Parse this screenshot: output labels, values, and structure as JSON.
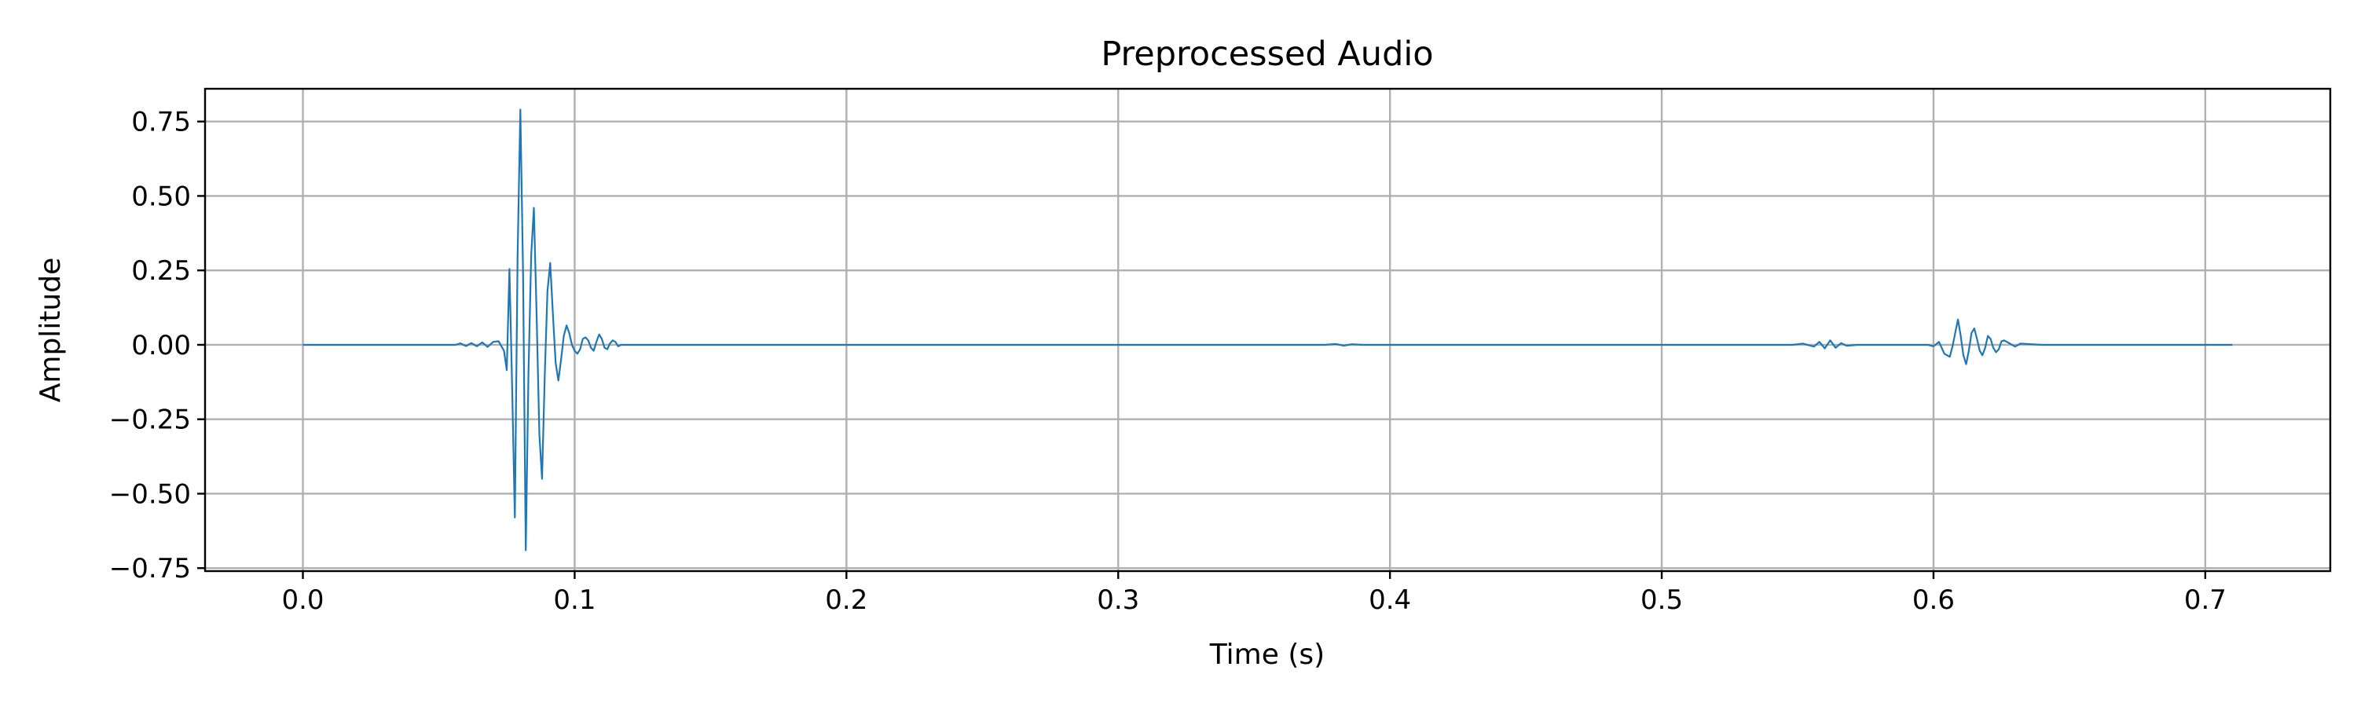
{
  "chart_data": {
    "type": "line",
    "title": "Preprocessed Audio",
    "xlabel": "Time (s)",
    "ylabel": "Amplitude",
    "xlim": [
      -0.036,
      0.746
    ],
    "ylim": [
      -0.76,
      0.86
    ],
    "xticks": [
      0.0,
      0.1,
      0.2,
      0.3,
      0.4,
      0.5,
      0.6,
      0.7
    ],
    "xtick_labels": [
      "0.0",
      "0.1",
      "0.2",
      "0.3",
      "0.4",
      "0.5",
      "0.6",
      "0.7"
    ],
    "yticks": [
      0.75,
      0.5,
      0.25,
      0.0,
      -0.25,
      -0.5,
      -0.75
    ],
    "ytick_labels": [
      "0.75",
      "0.50",
      "0.25",
      "0.00",
      "−0.25",
      "−0.50",
      "−0.75"
    ],
    "grid": true,
    "series": [
      {
        "color": "#1f77b4",
        "x": [
          0.0,
          0.056,
          0.058,
          0.06,
          0.062,
          0.064,
          0.066,
          0.068,
          0.07,
          0.072,
          0.074,
          0.075,
          0.076,
          0.077,
          0.078,
          0.079,
          0.08,
          0.081,
          0.082,
          0.083,
          0.084,
          0.085,
          0.086,
          0.087,
          0.088,
          0.089,
          0.09,
          0.091,
          0.092,
          0.093,
          0.094,
          0.095,
          0.096,
          0.097,
          0.098,
          0.099,
          0.1,
          0.101,
          0.102,
          0.103,
          0.104,
          0.105,
          0.106,
          0.107,
          0.108,
          0.109,
          0.11,
          0.111,
          0.112,
          0.113,
          0.114,
          0.115,
          0.116,
          0.117,
          0.118,
          0.12,
          0.376,
          0.38,
          0.383,
          0.386,
          0.39,
          0.548,
          0.552,
          0.556,
          0.558,
          0.56,
          0.562,
          0.564,
          0.566,
          0.568,
          0.572,
          0.598,
          0.6,
          0.602,
          0.604,
          0.606,
          0.607,
          0.608,
          0.609,
          0.61,
          0.611,
          0.612,
          0.613,
          0.614,
          0.615,
          0.616,
          0.617,
          0.618,
          0.619,
          0.62,
          0.621,
          0.622,
          0.623,
          0.624,
          0.625,
          0.626,
          0.628,
          0.63,
          0.632,
          0.636,
          0.64,
          0.71
        ],
        "y": [
          0.0,
          0.0,
          0.005,
          -0.004,
          0.006,
          -0.005,
          0.008,
          -0.007,
          0.01,
          0.012,
          -0.02,
          -0.085,
          0.255,
          -0.15,
          -0.58,
          0.3,
          0.79,
          0.25,
          -0.69,
          -0.1,
          0.3,
          0.46,
          0.1,
          -0.3,
          -0.45,
          -0.1,
          0.18,
          0.275,
          0.1,
          -0.06,
          -0.12,
          -0.05,
          0.03,
          0.065,
          0.04,
          0.0,
          -0.02,
          -0.03,
          -0.015,
          0.02,
          0.025,
          0.015,
          -0.01,
          -0.02,
          0.01,
          0.035,
          0.02,
          -0.01,
          -0.015,
          0.005,
          0.015,
          0.01,
          -0.005,
          0.0,
          0.0,
          0.0,
          0.0,
          0.003,
          -0.003,
          0.002,
          0.0,
          0.0,
          0.004,
          -0.006,
          0.01,
          -0.012,
          0.015,
          -0.01,
          0.006,
          -0.003,
          0.0,
          0.0,
          -0.005,
          0.01,
          -0.03,
          -0.04,
          -0.005,
          0.04,
          0.085,
          0.03,
          -0.035,
          -0.065,
          -0.02,
          0.04,
          0.055,
          0.02,
          -0.02,
          -0.035,
          -0.01,
          0.03,
          0.02,
          -0.01,
          -0.025,
          -0.015,
          0.012,
          0.015,
          0.005,
          -0.006,
          0.004,
          0.002,
          0.0,
          0.0
        ]
      }
    ]
  }
}
